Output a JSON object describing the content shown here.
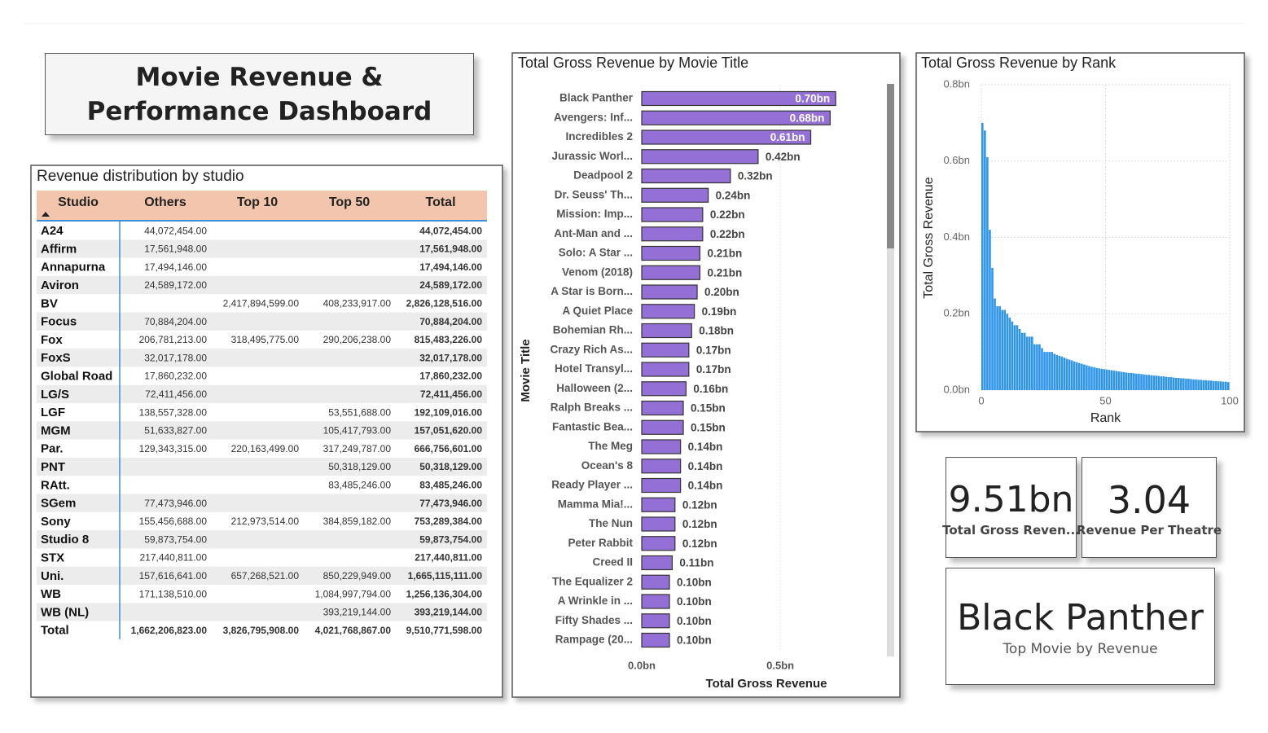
{
  "title": "Movie Revenue & Performance Dashboard",
  "table": {
    "title": "Revenue distribution by studio",
    "columns": [
      "Studio",
      "Others",
      "Top 10",
      "Top 50",
      "Total"
    ],
    "rows": [
      [
        "A24",
        "44,072,454.00",
        null,
        null,
        "44,072,454.00"
      ],
      [
        "Affirm",
        "17,561,948.00",
        null,
        null,
        "17,561,948.00"
      ],
      [
        "Annapurna",
        "17,494,146.00",
        null,
        null,
        "17,494,146.00"
      ],
      [
        "Aviron",
        "24,589,172.00",
        null,
        null,
        "24,589,172.00"
      ],
      [
        "BV",
        null,
        "2,417,894,599.00",
        "408,233,917.00",
        "2,826,128,516.00"
      ],
      [
        "Focus",
        "70,884,204.00",
        null,
        null,
        "70,884,204.00"
      ],
      [
        "Fox",
        "206,781,213.00",
        "318,495,775.00",
        "290,206,238.00",
        "815,483,226.00"
      ],
      [
        "FoxS",
        "32,017,178.00",
        null,
        null,
        "32,017,178.00"
      ],
      [
        "Global Road",
        "17,860,232.00",
        null,
        null,
        "17,860,232.00"
      ],
      [
        "LG/S",
        "72,411,456.00",
        null,
        null,
        "72,411,456.00"
      ],
      [
        "LGF",
        "138,557,328.00",
        null,
        "53,551,688.00",
        "192,109,016.00"
      ],
      [
        "MGM",
        "51,633,827.00",
        null,
        "105,417,793.00",
        "157,051,620.00"
      ],
      [
        "Par.",
        "129,343,315.00",
        "220,163,499.00",
        "317,249,787.00",
        "666,756,601.00"
      ],
      [
        "PNT",
        null,
        null,
        "50,318,129.00",
        "50,318,129.00"
      ],
      [
        "RAtt.",
        null,
        null,
        "83,485,246.00",
        "83,485,246.00"
      ],
      [
        "SGem",
        "77,473,946.00",
        null,
        null,
        "77,473,946.00"
      ],
      [
        "Sony",
        "155,456,688.00",
        "212,973,514.00",
        "384,859,182.00",
        "753,289,384.00"
      ],
      [
        "Studio 8",
        "59,873,754.00",
        null,
        null,
        "59,873,754.00"
      ],
      [
        "STX",
        "217,440,811.00",
        null,
        null,
        "217,440,811.00"
      ],
      [
        "Uni.",
        "157,616,641.00",
        "657,268,521.00",
        "850,229,949.00",
        "1,665,115,111.00"
      ],
      [
        "WB",
        "171,138,510.00",
        null,
        "1,084,997,794.00",
        "1,256,136,304.00"
      ],
      [
        "WB (NL)",
        null,
        null,
        "393,219,144.00",
        "393,219,144.00"
      ],
      [
        "Total",
        "1,662,206,823.00",
        "3,826,795,908.00",
        "4,021,768,867.00",
        "9,510,771,598.00"
      ]
    ]
  },
  "chart_data": [
    {
      "type": "barh",
      "title": "Total Gross Revenue by Movie Title",
      "x_label": "Total Gross Revenue",
      "y_label": "Movie Title",
      "color": "#9470d6",
      "grid": true,
      "categories": [
        "Black Panther",
        "Avengers: Inf...",
        "Incredibles 2",
        "Jurassic Worl...",
        "Deadpool 2",
        "Dr. Seuss' Th...",
        "Mission: Imp...",
        "Ant-Man and ...",
        "Solo: A Star ...",
        "Venom (2018)",
        "A Star is Born...",
        "A Quiet Place",
        "Bohemian Rh...",
        "Crazy Rich As...",
        "Hotel Transyl...",
        "Halloween (2...",
        "Ralph Breaks ...",
        "Fantastic Bea...",
        "The Meg",
        "Ocean's 8",
        "Ready Player ...",
        "Mamma Mia!...",
        "The Nun",
        "Peter Rabbit",
        "Creed II",
        "The Equalizer 2",
        "A Wrinkle in ...",
        "Fifty Shades ...",
        "Rampage (20..."
      ],
      "values": [
        0.7,
        0.68,
        0.61,
        0.42,
        0.32,
        0.24,
        0.22,
        0.22,
        0.21,
        0.21,
        0.2,
        0.19,
        0.18,
        0.17,
        0.17,
        0.16,
        0.15,
        0.15,
        0.14,
        0.14,
        0.14,
        0.12,
        0.12,
        0.12,
        0.11,
        0.1,
        0.1,
        0.1,
        0.1
      ],
      "value_labels": [
        "0.70bn",
        "0.68bn",
        "0.61bn",
        "0.42bn",
        "0.32bn",
        "0.24bn",
        "0.22bn",
        "0.22bn",
        "0.21bn",
        "0.21bn",
        "0.20bn",
        "0.19bn",
        "0.18bn",
        "0.17bn",
        "0.17bn",
        "0.16bn",
        "0.15bn",
        "0.15bn",
        "0.14bn",
        "0.14bn",
        "0.14bn",
        "0.12bn",
        "0.12bn",
        "0.12bn",
        "0.11bn",
        "0.10bn",
        "0.10bn",
        "0.10bn",
        "0.10bn"
      ],
      "xlim": [
        0,
        0.87
      ],
      "xticks": [
        {
          "value": 0,
          "label": "0.0bn"
        },
        {
          "value": 0.5,
          "label": "0.5bn"
        }
      ]
    },
    {
      "type": "column",
      "title": "Total Gross Revenue by Rank",
      "x_label": "Rank",
      "y_label": "Total Gross Revenue",
      "color": "#2e95e8",
      "grid": true,
      "x": [
        1,
        2,
        3,
        4,
        5,
        6,
        7,
        8,
        9,
        10,
        11,
        12,
        13,
        14,
        15,
        16,
        17,
        18,
        19,
        20,
        21,
        22,
        23,
        24,
        25,
        26,
        27,
        28,
        29,
        30,
        31,
        32,
        33,
        34,
        35,
        36,
        37,
        38,
        39,
        40,
        41,
        42,
        43,
        44,
        45,
        46,
        47,
        48,
        49,
        50,
        51,
        52,
        53,
        54,
        55,
        56,
        57,
        58,
        59,
        60,
        61,
        62,
        63,
        64,
        65,
        66,
        67,
        68,
        69,
        70,
        71,
        72,
        73,
        74,
        75,
        76,
        77,
        78,
        79,
        80,
        81,
        82,
        83,
        84,
        85,
        86,
        87,
        88,
        89,
        90,
        91,
        92,
        93,
        94,
        95,
        96,
        97,
        98,
        99,
        100
      ],
      "values": [
        0.7,
        0.68,
        0.61,
        0.42,
        0.32,
        0.24,
        0.22,
        0.22,
        0.21,
        0.21,
        0.2,
        0.19,
        0.18,
        0.17,
        0.17,
        0.16,
        0.15,
        0.15,
        0.14,
        0.14,
        0.14,
        0.12,
        0.12,
        0.12,
        0.11,
        0.1,
        0.1,
        0.1,
        0.1,
        0.095,
        0.092,
        0.09,
        0.088,
        0.085,
        0.082,
        0.08,
        0.078,
        0.075,
        0.073,
        0.071,
        0.069,
        0.067,
        0.065,
        0.063,
        0.061,
        0.06,
        0.058,
        0.057,
        0.056,
        0.055,
        0.054,
        0.053,
        0.052,
        0.051,
        0.05,
        0.049,
        0.048,
        0.047,
        0.046,
        0.045,
        0.045,
        0.044,
        0.043,
        0.043,
        0.042,
        0.041,
        0.04,
        0.04,
        0.039,
        0.038,
        0.038,
        0.037,
        0.036,
        0.036,
        0.035,
        0.034,
        0.034,
        0.033,
        0.032,
        0.032,
        0.031,
        0.031,
        0.03,
        0.03,
        0.029,
        0.028,
        0.028,
        0.027,
        0.027,
        0.026,
        0.026,
        0.025,
        0.025,
        0.024,
        0.024,
        0.023,
        0.023,
        0.022,
        0.022,
        0.021
      ],
      "xlim": [
        0,
        100
      ],
      "xticks": [
        0,
        50,
        100
      ],
      "ylim": [
        0,
        0.8
      ],
      "yticks": [
        {
          "value": 0,
          "label": "0.0bn"
        },
        {
          "value": 0.2,
          "label": "0.2bn"
        },
        {
          "value": 0.4,
          "label": "0.4bn"
        },
        {
          "value": 0.6,
          "label": "0.6bn"
        },
        {
          "value": 0.8,
          "label": "0.8bn"
        }
      ]
    }
  ],
  "cards": [
    {
      "value": "9.51bn",
      "label": "Total Gross Reven..."
    },
    {
      "value": "3.04",
      "label": "Revenue Per Theatre"
    },
    {
      "value": "Black Panther",
      "label": "Top Movie by Revenue"
    }
  ]
}
